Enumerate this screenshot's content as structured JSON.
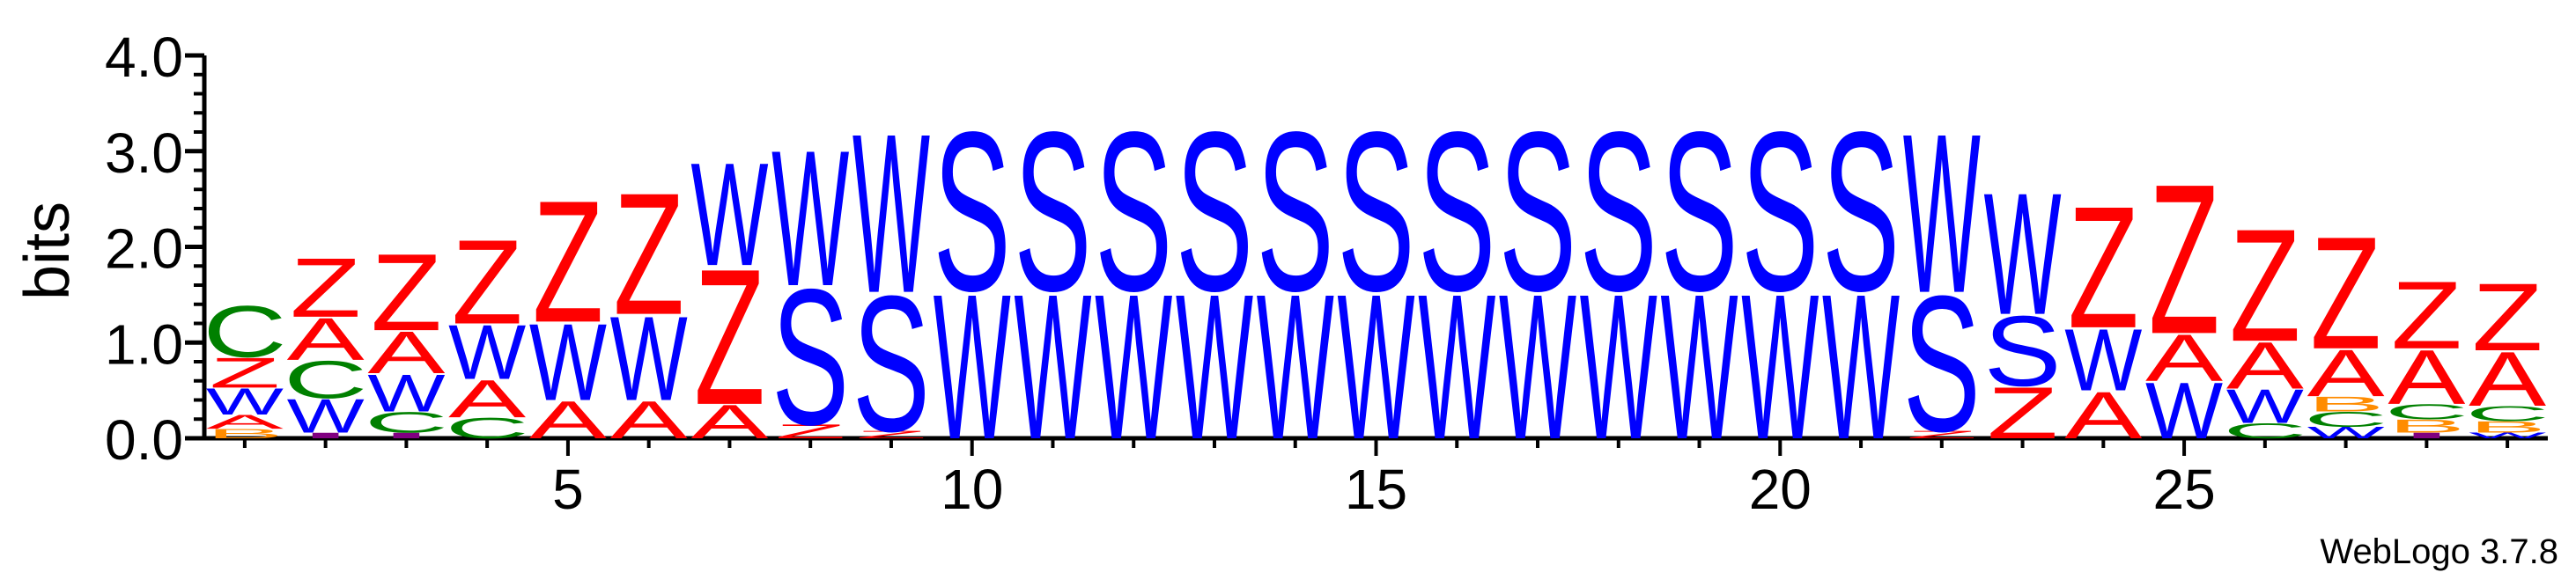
{
  "chart_data": {
    "type": "sequence-logo",
    "ylabel": "bits",
    "ylim": [
      0,
      4
    ],
    "y_ticks": [
      "0.0",
      "1.0",
      "2.0",
      "3.0",
      "4.0"
    ],
    "x_ticks": [
      "5",
      "10",
      "15",
      "20",
      "25"
    ],
    "x_tick_positions": [
      5,
      10,
      15,
      20,
      25
    ],
    "positions": 29,
    "colors": {
      "Z": "#ff0000",
      "A": "#ff0000",
      "W": "#0000ff",
      "S": "#0000ff",
      "C": "#008000",
      "B": "#ff8c00",
      "I": "#800080"
    },
    "columns": [
      {
        "position": 1,
        "stack": [
          {
            "letter": "B",
            "height": 0.1
          },
          {
            "letter": "A",
            "height": 0.15
          },
          {
            "letter": "W",
            "height": 0.28
          },
          {
            "letter": "Z",
            "height": 0.32
          },
          {
            "letter": "C",
            "height": 0.55
          }
        ]
      },
      {
        "position": 2,
        "stack": [
          {
            "letter": "I",
            "height": 0.06
          },
          {
            "letter": "W",
            "height": 0.36
          },
          {
            "letter": "C",
            "height": 0.4
          },
          {
            "letter": "A",
            "height": 0.45
          },
          {
            "letter": "Z",
            "height": 0.63
          }
        ]
      },
      {
        "position": 3,
        "stack": [
          {
            "letter": "I",
            "height": 0.06
          },
          {
            "letter": "C",
            "height": 0.22
          },
          {
            "letter": "W",
            "height": 0.4
          },
          {
            "letter": "A",
            "height": 0.45
          },
          {
            "letter": "Z",
            "height": 0.82
          }
        ]
      },
      {
        "position": 4,
        "stack": [
          {
            "letter": "C",
            "height": 0.22
          },
          {
            "letter": "A",
            "height": 0.4
          },
          {
            "letter": "W",
            "height": 0.58
          },
          {
            "letter": "Z",
            "height": 0.9
          }
        ]
      },
      {
        "position": 5,
        "stack": [
          {
            "letter": "A",
            "height": 0.4
          },
          {
            "letter": "W",
            "height": 0.82
          },
          {
            "letter": "Z",
            "height": 1.3
          }
        ]
      },
      {
        "position": 6,
        "stack": [
          {
            "letter": "A",
            "height": 0.4
          },
          {
            "letter": "W",
            "height": 0.9
          },
          {
            "letter": "Z",
            "height": 1.3
          }
        ]
      },
      {
        "position": 7,
        "stack": [
          {
            "letter": "A",
            "height": 0.36
          },
          {
            "letter": "Z",
            "height": 1.45
          },
          {
            "letter": "W",
            "height": 1.1
          }
        ]
      },
      {
        "position": 8,
        "stack": [
          {
            "letter": "Z",
            "height": 0.15
          },
          {
            "letter": "S",
            "height": 1.45
          },
          {
            "letter": "W",
            "height": 1.45
          }
        ]
      },
      {
        "position": 9,
        "stack": [
          {
            "letter": "Z",
            "height": 0.08
          },
          {
            "letter": "S",
            "height": 1.45
          },
          {
            "letter": "W",
            "height": 1.7
          }
        ]
      },
      {
        "position": 10,
        "stack": [
          {
            "letter": "W",
            "height": 1.55
          },
          {
            "letter": "S",
            "height": 1.7
          }
        ]
      },
      {
        "position": 11,
        "stack": [
          {
            "letter": "W",
            "height": 1.55
          },
          {
            "letter": "S",
            "height": 1.7
          }
        ]
      },
      {
        "position": 12,
        "stack": [
          {
            "letter": "W",
            "height": 1.55
          },
          {
            "letter": "S",
            "height": 1.7
          }
        ]
      },
      {
        "position": 13,
        "stack": [
          {
            "letter": "W",
            "height": 1.55
          },
          {
            "letter": "S",
            "height": 1.7
          }
        ]
      },
      {
        "position": 14,
        "stack": [
          {
            "letter": "W",
            "height": 1.55
          },
          {
            "letter": "S",
            "height": 1.7
          }
        ]
      },
      {
        "position": 15,
        "stack": [
          {
            "letter": "W",
            "height": 1.55
          },
          {
            "letter": "S",
            "height": 1.7
          }
        ]
      },
      {
        "position": 16,
        "stack": [
          {
            "letter": "W",
            "height": 1.55
          },
          {
            "letter": "S",
            "height": 1.7
          }
        ]
      },
      {
        "position": 17,
        "stack": [
          {
            "letter": "W",
            "height": 1.55
          },
          {
            "letter": "S",
            "height": 1.7
          }
        ]
      },
      {
        "position": 18,
        "stack": [
          {
            "letter": "W",
            "height": 1.55
          },
          {
            "letter": "S",
            "height": 1.7
          }
        ]
      },
      {
        "position": 19,
        "stack": [
          {
            "letter": "W",
            "height": 1.55
          },
          {
            "letter": "S",
            "height": 1.7
          }
        ]
      },
      {
        "position": 20,
        "stack": [
          {
            "letter": "W",
            "height": 1.55
          },
          {
            "letter": "S",
            "height": 1.7
          }
        ]
      },
      {
        "position": 21,
        "stack": [
          {
            "letter": "W",
            "height": 1.55
          },
          {
            "letter": "S",
            "height": 1.7
          }
        ]
      },
      {
        "position": 22,
        "stack": [
          {
            "letter": "Z",
            "height": 0.08
          },
          {
            "letter": "S",
            "height": 1.45
          },
          {
            "letter": "W",
            "height": 1.7
          }
        ]
      },
      {
        "position": 23,
        "stack": [
          {
            "letter": "Z",
            "height": 0.55
          },
          {
            "letter": "S",
            "height": 0.75
          },
          {
            "letter": "W",
            "height": 1.3
          }
        ]
      },
      {
        "position": 24,
        "stack": [
          {
            "letter": "A",
            "height": 0.5
          },
          {
            "letter": "W",
            "height": 0.66
          },
          {
            "letter": "Z",
            "height": 1.3
          }
        ]
      },
      {
        "position": 25,
        "stack": [
          {
            "letter": "W",
            "height": 0.6
          },
          {
            "letter": "A",
            "height": 0.5
          },
          {
            "letter": "Z",
            "height": 1.6
          }
        ]
      },
      {
        "position": 26,
        "stack": [
          {
            "letter": "C",
            "height": 0.16
          },
          {
            "letter": "W",
            "height": 0.36
          },
          {
            "letter": "A",
            "height": 0.5
          },
          {
            "letter": "Z",
            "height": 1.2
          }
        ]
      },
      {
        "position": 27,
        "stack": [
          {
            "letter": "W",
            "height": 0.12
          },
          {
            "letter": "C",
            "height": 0.16
          },
          {
            "letter": "B",
            "height": 0.16
          },
          {
            "letter": "A",
            "height": 0.5
          },
          {
            "letter": "Z",
            "height": 1.2
          }
        ]
      },
      {
        "position": 28,
        "stack": [
          {
            "letter": "I",
            "height": 0.06
          },
          {
            "letter": "B",
            "height": 0.14
          },
          {
            "letter": "C",
            "height": 0.16
          },
          {
            "letter": "A",
            "height": 0.58
          },
          {
            "letter": "Z",
            "height": 0.72
          }
        ]
      },
      {
        "position": 29,
        "stack": [
          {
            "letter": "W",
            "height": 0.06
          },
          {
            "letter": "B",
            "height": 0.12
          },
          {
            "letter": "C",
            "height": 0.16
          },
          {
            "letter": "A",
            "height": 0.58
          },
          {
            "letter": "Z",
            "height": 0.72
          }
        ]
      }
    ]
  },
  "credit": "WebLogo 3.7.8"
}
